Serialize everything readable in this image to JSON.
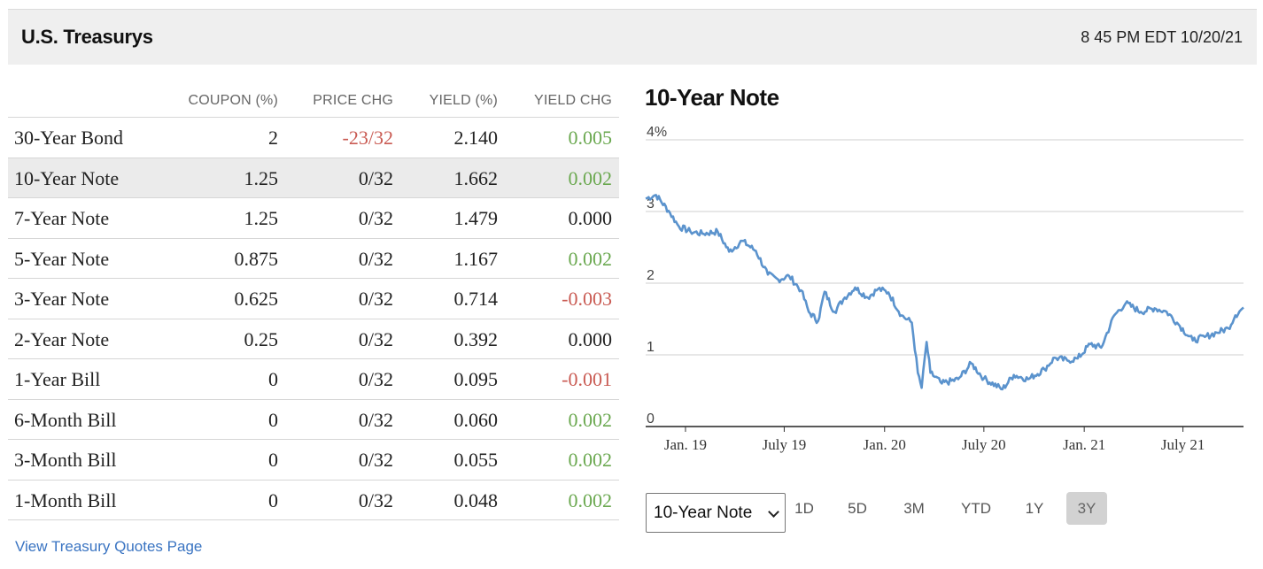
{
  "header": {
    "title": "U.S. Treasurys",
    "timestamp": "8 45 PM EDT 10/20/21"
  },
  "table": {
    "columns": [
      "COUPON (%)",
      "PRICE CHG",
      "YIELD (%)",
      "YIELD CHG"
    ],
    "rows": [
      {
        "name": "30-Year Bond",
        "coupon": "2",
        "price_chg": "-23/32",
        "yield": "2.140",
        "yield_chg": "0.005"
      },
      {
        "name": "10-Year Note",
        "coupon": "1.25",
        "price_chg": "0/32",
        "yield": "1.662",
        "yield_chg": "0.002"
      },
      {
        "name": "7-Year Note",
        "coupon": "1.25",
        "price_chg": "0/32",
        "yield": "1.479",
        "yield_chg": "0.000"
      },
      {
        "name": "5-Year Note",
        "coupon": "0.875",
        "price_chg": "0/32",
        "yield": "1.167",
        "yield_chg": "0.002"
      },
      {
        "name": "3-Year Note",
        "coupon": "0.625",
        "price_chg": "0/32",
        "yield": "0.714",
        "yield_chg": "-0.003"
      },
      {
        "name": "2-Year Note",
        "coupon": "0.25",
        "price_chg": "0/32",
        "yield": "0.392",
        "yield_chg": "0.000"
      },
      {
        "name": "1-Year Bill",
        "coupon": "0",
        "price_chg": "0/32",
        "yield": "0.095",
        "yield_chg": "-0.001"
      },
      {
        "name": "6-Month Bill",
        "coupon": "0",
        "price_chg": "0/32",
        "yield": "0.060",
        "yield_chg": "0.002"
      },
      {
        "name": "3-Month Bill",
        "coupon": "0",
        "price_chg": "0/32",
        "yield": "0.055",
        "yield_chg": "0.002"
      },
      {
        "name": "1-Month Bill",
        "coupon": "0",
        "price_chg": "0/32",
        "yield": "0.048",
        "yield_chg": "0.002"
      }
    ],
    "selected_row": "10-Year Note"
  },
  "link_text": "View Treasury Quotes Page",
  "colors": {
    "negative": "#c95a52",
    "positive": "#6aa84f",
    "line": "#5b93cd",
    "link": "#3a74c2"
  },
  "chart": {
    "title": "10-Year Note",
    "select_value": "10-Year Note",
    "range_buttons": [
      "1D",
      "5D",
      "3M",
      "YTD",
      "1Y",
      "3Y"
    ],
    "selected_range": "3Y"
  },
  "chart_data": {
    "type": "line",
    "title": "10-Year Note",
    "ylim": [
      0,
      4
    ],
    "y_ticks": [
      "4%",
      "3",
      "2",
      "1",
      "0"
    ],
    "x_ticks": [
      "Jan. 19",
      "July 19",
      "Jan. 20",
      "July 20",
      "Jan. 21",
      "July 21"
    ],
    "x_range": [
      "2018-10-20",
      "2021-10-20"
    ],
    "grid": true,
    "series": [
      {
        "x": [
          "2018-10-20",
          "2018-11-08",
          "2018-12-01",
          "2018-12-20",
          "2019-01-10",
          "2019-02-01",
          "2019-03-01",
          "2019-03-22",
          "2019-04-15",
          "2019-05-10",
          "2019-06-01",
          "2019-06-20",
          "2019-07-10",
          "2019-08-01",
          "2019-08-15",
          "2019-09-01",
          "2019-09-13",
          "2019-10-01",
          "2019-10-20",
          "2019-11-08",
          "2019-12-01",
          "2019-12-20",
          "2020-01-08",
          "2020-02-01",
          "2020-02-20",
          "2020-03-02",
          "2020-03-09",
          "2020-03-18",
          "2020-03-25",
          "2020-04-15",
          "2020-05-15",
          "2020-06-08",
          "2020-07-01",
          "2020-08-04",
          "2020-08-25",
          "2020-09-20",
          "2020-10-20",
          "2020-11-08",
          "2020-12-01",
          "2020-12-20",
          "2021-01-12",
          "2021-02-01",
          "2021-02-25",
          "2021-03-18",
          "2021-04-15",
          "2021-05-10",
          "2021-06-01",
          "2021-06-20",
          "2021-07-19",
          "2021-08-10",
          "2021-09-01",
          "2021-09-22",
          "2021-10-05",
          "2021-10-20"
        ],
        "values": [
          3.18,
          3.23,
          3.01,
          2.79,
          2.72,
          2.69,
          2.72,
          2.44,
          2.59,
          2.45,
          2.12,
          2.05,
          2.1,
          1.9,
          1.6,
          1.47,
          1.88,
          1.6,
          1.8,
          1.94,
          1.8,
          1.92,
          1.87,
          1.55,
          1.45,
          0.75,
          0.54,
          1.18,
          0.75,
          0.6,
          0.66,
          0.88,
          0.67,
          0.52,
          0.72,
          0.66,
          0.8,
          0.96,
          0.92,
          0.95,
          1.15,
          1.1,
          1.55,
          1.72,
          1.6,
          1.65,
          1.6,
          1.45,
          1.2,
          1.25,
          1.31,
          1.37,
          1.55,
          1.66
        ]
      }
    ]
  }
}
